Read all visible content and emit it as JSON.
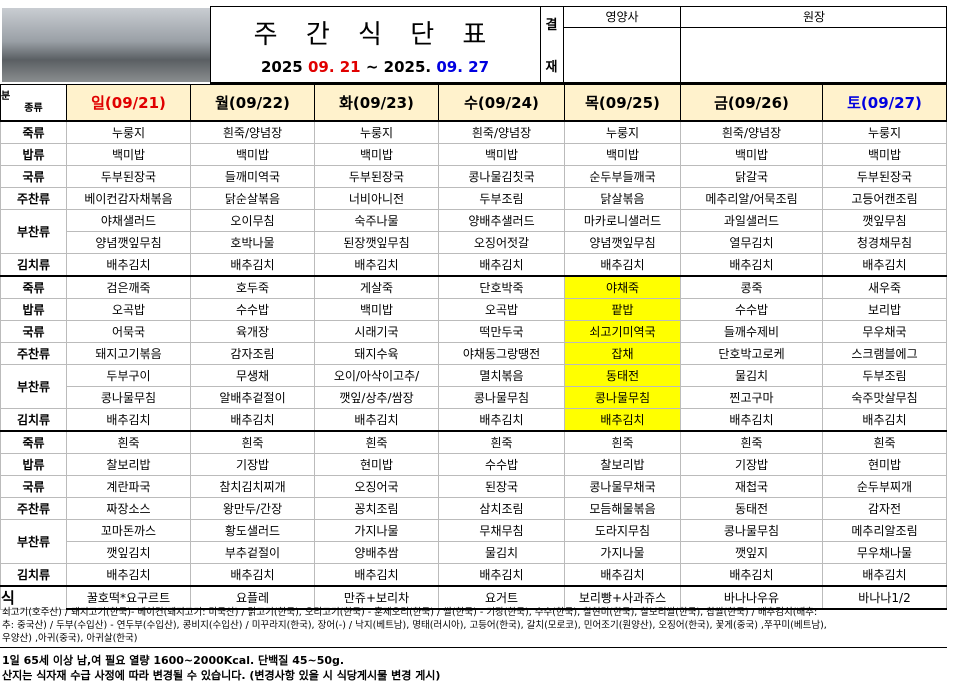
{
  "header": {
    "title": "주 간 식 단 표",
    "date": [
      "2025",
      "09. 21",
      "~ 2025.",
      "09. 27"
    ],
    "date_colors": [
      "#000000",
      "#e00000",
      "#000000",
      "#0000e0"
    ]
  },
  "approval": {
    "label": [
      "결",
      "재"
    ],
    "roles": [
      "영양사",
      "원장"
    ]
  },
  "table": {
    "corner": [
      "분",
      "종류"
    ],
    "days": [
      {
        "label": "일(09/21)",
        "color": "#e00000"
      },
      {
        "label": "월(09/22)",
        "color": "#000000"
      },
      {
        "label": "화(09/23)",
        "color": "#000000"
      },
      {
        "label": "수(09/24)",
        "color": "#000000"
      },
      {
        "label": "목(09/25)",
        "color": "#000000"
      },
      {
        "label": "금(09/26)",
        "color": "#000000"
      },
      {
        "label": "토(09/27)",
        "color": "#0000e0"
      }
    ],
    "blocks": [
      {
        "rows": [
          {
            "category": "죽류",
            "items": [
              "누룽지",
              "흰죽/양념장",
              "누룽지",
              "흰죽/양념장",
              "누룽지",
              "흰죽/양념장",
              "누룽지"
            ]
          },
          {
            "category": "밥류",
            "items": [
              "백미밥",
              "백미밥",
              "백미밥",
              "백미밥",
              "백미밥",
              "백미밥",
              "백미밥"
            ]
          },
          {
            "category": "국류",
            "items": [
              "두부된장국",
              "들깨미역국",
              "두부된장국",
              "콩나물김칫국",
              "순두부들깨국",
              "닭갈국",
              "두부된장국"
            ]
          },
          {
            "category": "주찬류",
            "items": [
              "베이컨감자채볶음",
              "닭순살볶음",
              "너비아니전",
              "두부조림",
              "닭살볶음",
              "메추리알/어묵조림",
              "고등어캔조림"
            ]
          },
          {
            "category": "부찬류",
            "sub_rows": [
              [
                "야채샐러드",
                "오이무침",
                "숙주나물",
                "양배추샐러드",
                "마카로니샐러드",
                "과일샐러드",
                "깻잎무침"
              ],
              [
                "양념깻잎무침",
                "호박나물",
                "된장깻잎무침",
                "오징어젓갈",
                "양념깻잎무침",
                "열무김치",
                "청경채무침"
              ]
            ]
          },
          {
            "category": "김치류",
            "items": [
              "배추김치",
              "배추김치",
              "배추김치",
              "배추김치",
              "배추김치",
              "배추김치",
              "배추김치"
            ]
          }
        ]
      },
      {
        "highlight": {
          "day": 4,
          "color": "#ffff00"
        },
        "rows": [
          {
            "category": "죽류",
            "items": [
              "검은깨죽",
              "호두죽",
              "게살죽",
              "단호박죽",
              "야채죽",
              "콩죽",
              "새우죽"
            ]
          },
          {
            "category": "밥류",
            "items": [
              "오곡밥",
              "수수밥",
              "백미밥",
              "오곡밥",
              "팥밥",
              "수수밥",
              "보리밥"
            ]
          },
          {
            "category": "국류",
            "items": [
              "어묵국",
              "육개장",
              "시래기국",
              "떡만두국",
              "쇠고기미역국",
              "들깨수제비",
              "무우채국"
            ]
          },
          {
            "category": "주찬류",
            "items": [
              "돼지고기볶음",
              "감자조림",
              "돼지수육",
              "야채동그랑땡전",
              "잡채",
              "단호박고로케",
              "스크램블에그"
            ]
          },
          {
            "category": "부찬류",
            "sub_rows": [
              [
                "두부구이",
                "무생채",
                "오이/아삭이고추/",
                "멸치볶음",
                "동태전",
                "물김치",
                "두부조림"
              ],
              [
                "콩나물무침",
                "알배추겉절이",
                "깻잎/상추/쌈장",
                "콩나물무침",
                "콩나물무침",
                "찐고구마",
                "숙주맛살무침"
              ]
            ]
          },
          {
            "category": "김치류",
            "items": [
              "배추김치",
              "배추김치",
              "배추김치",
              "배추김치",
              "배추김치",
              "배추김치",
              "배추김치"
            ]
          }
        ]
      },
      {
        "rows": [
          {
            "category": "죽류",
            "items": [
              "흰죽",
              "흰죽",
              "흰죽",
              "흰죽",
              "흰죽",
              "흰죽",
              "흰죽"
            ]
          },
          {
            "category": "밥류",
            "items": [
              "찰보리밥",
              "기장밥",
              "현미밥",
              "수수밥",
              "찰보리밥",
              "기장밥",
              "현미밥"
            ]
          },
          {
            "category": "국류",
            "items": [
              "계란파국",
              "참치김치찌개",
              "오징어국",
              "된장국",
              "콩나물무채국",
              "재첩국",
              "순두부찌개"
            ]
          },
          {
            "category": "주찬류",
            "items": [
              "짜장소스",
              "왕만두/간장",
              "꽁치조림",
              "삼치조림",
              "모듬해물볶음",
              "동태전",
              "감자전"
            ]
          },
          {
            "category": "부찬류",
            "sub_rows": [
              [
                "꼬마돈까스",
                "황도샐러드",
                "가지나물",
                "무채무침",
                "도라지무침",
                "콩나물무침",
                "메추리알조림"
              ],
              [
                "깻잎김치",
                "부추겉절이",
                "양배추쌈",
                "물김치",
                "가지나물",
                "깻잎지",
                "무우채나물"
              ]
            ]
          },
          {
            "category": "김치류",
            "items": [
              "배추김치",
              "배추김치",
              "배추김치",
              "배추김치",
              "배추김치",
              "배추김치",
              "배추김치"
            ]
          }
        ]
      }
    ],
    "snack": {
      "label": "식",
      "items": [
        "꿀호떡*요구르트",
        "요플레",
        "만쥬+보리차",
        "요거트",
        "보리빵+사과쥬스",
        "바나나우유",
        "바나나1/2"
      ]
    }
  },
  "footer": {
    "origin": [
      "쇠고기(호주산) / 돼지고기(한국)- 베이컨(돼지고기: 미국산) / 닭고기(한국), 오리고기(한국) - 훈제오리(한국) / 쌀(한국) - 기장(한국), 수수(한국), 찰현미(한국), 찰보리쌀(한국), 찹쌀(한국) / 배추김치(배추:",
      "추: 중국산) / 두부(수입산) - 연두부(수입산), 콩비지(수입산) / 미꾸라지(한국), 장어(-) / 낙지(베트남), 명태(러시아), 고등어(한국), 갈치(모로코), 민어조기(원양산), 오징어(한국), 꽃게(중국) ,쭈꾸미(베트남),",
      "우양산) ,아귀(중국), 아귀살(한국)"
    ],
    "notes": [
      "1일 65세 이상 남,여 필요 열량 1600~2000Kcal. 단백질 45~50g.",
      "산지는 식자재 수급 사정에 따라 변경될 수 있습니다. (변경사항 있을 시 식당게시물 변경 게시)"
    ]
  }
}
